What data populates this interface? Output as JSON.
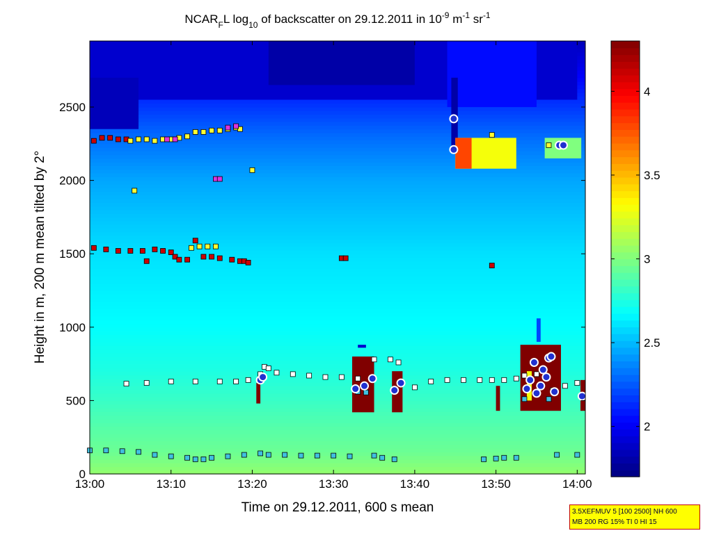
{
  "chart_data": {
    "type": "heatmap",
    "title": {
      "base": "NCAR",
      "base_sub": "F",
      "base_tail": "L log",
      "log_sub": "10",
      "mid": " of backscatter on 29.12.2011 in 10",
      "exp1": "-9",
      "unit1": " m",
      "exp2": "-1",
      "unit2": " sr",
      "exp3": "-1"
    },
    "xlabel": "Time on 29.12.2011, 600 s mean",
    "ylabel": "Height in m, 200 m mean tilted by 2°",
    "xlim_min": [
      0,
      61
    ],
    "ylim": [
      0,
      2950
    ],
    "xticks": [
      {
        "min": 0,
        "label": "13:00"
      },
      {
        "min": 10,
        "label": "13:10"
      },
      {
        "min": 20,
        "label": "13:20"
      },
      {
        "min": 30,
        "label": "13:30"
      },
      {
        "min": 40,
        "label": "13:40"
      },
      {
        "min": 50,
        "label": "13:50"
      },
      {
        "min": 60,
        "label": "14:00"
      }
    ],
    "yticks": [
      {
        "v": 0,
        "label": "0"
      },
      {
        "v": 500,
        "label": "500"
      },
      {
        "v": 1000,
        "label": "1000"
      },
      {
        "v": 1500,
        "label": "1500"
      },
      {
        "v": 2000,
        "label": "2000"
      },
      {
        "v": 2500,
        "label": "2500"
      }
    ],
    "colorbar": {
      "range": [
        1.7,
        4.3
      ],
      "ticks": [
        {
          "v": 2,
          "label": "2"
        },
        {
          "v": 2.5,
          "label": "2.5"
        },
        {
          "v": 3,
          "label": "3"
        },
        {
          "v": 3.5,
          "label": "3.5"
        },
        {
          "v": 4,
          "label": "4"
        }
      ],
      "colormap": "jet"
    },
    "background_profile": [
      {
        "h": 0,
        "v": 3.05
      },
      {
        "h": 150,
        "v": 2.95
      },
      {
        "h": 300,
        "v": 2.9
      },
      {
        "h": 500,
        "v": 2.82
      },
      {
        "h": 700,
        "v": 2.75
      },
      {
        "h": 1000,
        "v": 2.68
      },
      {
        "h": 1500,
        "v": 2.6
      },
      {
        "h": 2000,
        "v": 2.45
      },
      {
        "h": 2300,
        "v": 2.3
      },
      {
        "h": 2600,
        "v": 2.1
      },
      {
        "h": 2950,
        "v": 1.85
      }
    ],
    "regions": [
      {
        "t0": 0,
        "t1": 60,
        "h0": 2550,
        "h1": 2950,
        "v": 1.9
      },
      {
        "t0": 0,
        "t1": 6,
        "h0": 2350,
        "h1": 2700,
        "v": 1.85
      },
      {
        "t0": 22,
        "t1": 40,
        "h0": 2650,
        "h1": 2950,
        "v": 1.8
      },
      {
        "t0": 44,
        "t1": 55,
        "h0": 2500,
        "h1": 2950,
        "v": 2.05
      },
      {
        "t0": 44.5,
        "t1": 45.3,
        "h0": 2200,
        "h1": 2700,
        "v": 1.8
      },
      {
        "t0": 45,
        "t1": 52.5,
        "h0": 2080,
        "h1": 2290,
        "v": 3.3
      },
      {
        "t0": 45,
        "t1": 47,
        "h0": 2080,
        "h1": 2290,
        "v": 3.8
      },
      {
        "t0": 56,
        "t1": 60.5,
        "h0": 2150,
        "h1": 2290,
        "v": 3.0
      },
      {
        "t0": 20.5,
        "t1": 21,
        "h0": 480,
        "h1": 620,
        "v": 4.3
      },
      {
        "t0": 32.3,
        "t1": 35,
        "h0": 420,
        "h1": 800,
        "v": 4.3
      },
      {
        "t0": 37.2,
        "t1": 38.5,
        "h0": 420,
        "h1": 700,
        "v": 4.3
      },
      {
        "t0": 50,
        "t1": 50.5,
        "h0": 430,
        "h1": 600,
        "v": 4.3
      },
      {
        "t0": 53,
        "t1": 58,
        "h0": 430,
        "h1": 880,
        "v": 4.3
      },
      {
        "t0": 53.8,
        "t1": 54.4,
        "h0": 500,
        "h1": 700,
        "v": 3.3
      },
      {
        "t0": 60.4,
        "t1": 61,
        "h0": 430,
        "h1": 640,
        "v": 4.3
      },
      {
        "t0": 55,
        "t1": 55.5,
        "h0": 900,
        "h1": 1060,
        "v": 2.2
      },
      {
        "t0": 33,
        "t1": 34,
        "h0": 860,
        "h1": 880,
        "v": 1.9
      }
    ],
    "series": [
      {
        "marker": "square",
        "fill": "#ffffff",
        "stroke": "#000000",
        "points": [
          [
            4.5,
            615
          ],
          [
            7,
            620
          ],
          [
            10,
            630
          ],
          [
            13,
            630
          ],
          [
            16,
            630
          ],
          [
            18,
            630
          ],
          [
            19.5,
            640
          ],
          [
            21,
            680
          ],
          [
            21.5,
            730
          ],
          [
            22,
            720
          ],
          [
            23,
            690
          ],
          [
            25,
            680
          ],
          [
            27,
            670
          ],
          [
            29,
            660
          ],
          [
            31,
            660
          ],
          [
            33,
            650
          ],
          [
            35,
            780
          ],
          [
            37,
            780
          ],
          [
            38,
            760
          ],
          [
            40,
            590
          ],
          [
            42,
            630
          ],
          [
            44,
            640
          ],
          [
            46,
            640
          ],
          [
            48,
            640
          ],
          [
            49.5,
            640
          ],
          [
            51,
            640
          ],
          [
            52.5,
            650
          ],
          [
            53.5,
            670
          ],
          [
            55,
            680
          ],
          [
            57,
            570
          ],
          [
            58.5,
            600
          ],
          [
            60,
            620
          ]
        ]
      },
      {
        "marker": "square",
        "fill": "#40c0e0",
        "stroke": "#000000",
        "points": [
          [
            0,
            160
          ],
          [
            2,
            160
          ],
          [
            4,
            155
          ],
          [
            6,
            150
          ],
          [
            8,
            130
          ],
          [
            10,
            120
          ],
          [
            12,
            110
          ],
          [
            13,
            100
          ],
          [
            14,
            100
          ],
          [
            15,
            110
          ],
          [
            17,
            120
          ],
          [
            19,
            130
          ],
          [
            21,
            140
          ],
          [
            22,
            130
          ],
          [
            24,
            130
          ],
          [
            26,
            125
          ],
          [
            28,
            125
          ],
          [
            30,
            125
          ],
          [
            32,
            120
          ],
          [
            33,
            560
          ],
          [
            34,
            555
          ],
          [
            35,
            125
          ],
          [
            36,
            110
          ],
          [
            37.5,
            100
          ],
          [
            48.5,
            100
          ],
          [
            50,
            105
          ],
          [
            51,
            110
          ],
          [
            52.5,
            110
          ],
          [
            53.5,
            510
          ],
          [
            56.5,
            510
          ],
          [
            57.5,
            130
          ],
          [
            60,
            130
          ]
        ]
      },
      {
        "marker": "square",
        "fill": "#cc0000",
        "stroke": "#000000",
        "points": [
          [
            0.5,
            1540
          ],
          [
            2,
            1530
          ],
          [
            3.5,
            1520
          ],
          [
            5,
            1520
          ],
          [
            6.5,
            1520
          ],
          [
            7,
            1450
          ],
          [
            8,
            1530
          ],
          [
            9,
            1520
          ],
          [
            10,
            1510
          ],
          [
            10.5,
            1480
          ],
          [
            11,
            1460
          ],
          [
            12,
            1460
          ],
          [
            13,
            1590
          ],
          [
            14,
            1480
          ],
          [
            15,
            1480
          ],
          [
            16,
            1470
          ],
          [
            17.5,
            1460
          ],
          [
            18.5,
            1450
          ],
          [
            19,
            1450
          ],
          [
            19.5,
            1440
          ],
          [
            31,
            1470
          ],
          [
            31.5,
            1470
          ],
          [
            49.5,
            1420
          ],
          [
            0.5,
            2270
          ],
          [
            1.5,
            2290
          ],
          [
            2.5,
            2290
          ],
          [
            3.5,
            2280
          ],
          [
            4.5,
            2280
          ]
        ]
      },
      {
        "marker": "square",
        "fill": "#ffff33",
        "stroke": "#000000",
        "points": [
          [
            5,
            2270
          ],
          [
            6,
            2280
          ],
          [
            7,
            2280
          ],
          [
            8,
            2270
          ],
          [
            9,
            2280
          ],
          [
            10,
            2280
          ],
          [
            11,
            2290
          ],
          [
            12,
            2300
          ],
          [
            13,
            2330
          ],
          [
            14,
            2330
          ],
          [
            15,
            2340
          ],
          [
            16,
            2340
          ],
          [
            17,
            2350
          ],
          [
            18,
            2360
          ],
          [
            18.5,
            2350
          ],
          [
            12.5,
            1540
          ],
          [
            13.5,
            1550
          ],
          [
            14.5,
            1550
          ],
          [
            15.5,
            1550
          ],
          [
            5.5,
            1930
          ],
          [
            20,
            2070
          ],
          [
            49.5,
            2310
          ],
          [
            56.5,
            2240
          ]
        ]
      },
      {
        "marker": "square",
        "fill": "#dd33dd",
        "stroke": "#000000",
        "points": [
          [
            9.5,
            2280
          ],
          [
            10.5,
            2280
          ],
          [
            15.5,
            2010
          ],
          [
            16,
            2010
          ],
          [
            17,
            2360
          ],
          [
            18,
            2370
          ]
        ]
      },
      {
        "marker": "circle",
        "fill": "#2030d0",
        "stroke": "#ffffff",
        "points": [
          [
            44.8,
            2420
          ],
          [
            44.8,
            2210
          ],
          [
            21,
            640
          ],
          [
            21.3,
            660
          ],
          [
            32.7,
            580
          ],
          [
            33.8,
            600
          ],
          [
            34.8,
            650
          ],
          [
            37.5,
            570
          ],
          [
            38.3,
            620
          ],
          [
            53.8,
            580
          ],
          [
            54.2,
            640
          ],
          [
            54.7,
            760
          ],
          [
            55,
            550
          ],
          [
            55.5,
            600
          ],
          [
            55.8,
            710
          ],
          [
            56.2,
            660
          ],
          [
            56.5,
            790
          ],
          [
            56.8,
            800
          ],
          [
            57.2,
            560
          ],
          [
            60.6,
            530
          ],
          [
            57.8,
            2240
          ],
          [
            58.3,
            2240
          ]
        ]
      }
    ]
  },
  "stamp": {
    "line1": "3.5XEFMUV 5 [100 2500] NH 600",
    "line2": "MB 200 RG 15% TI 0 HI 15"
  }
}
